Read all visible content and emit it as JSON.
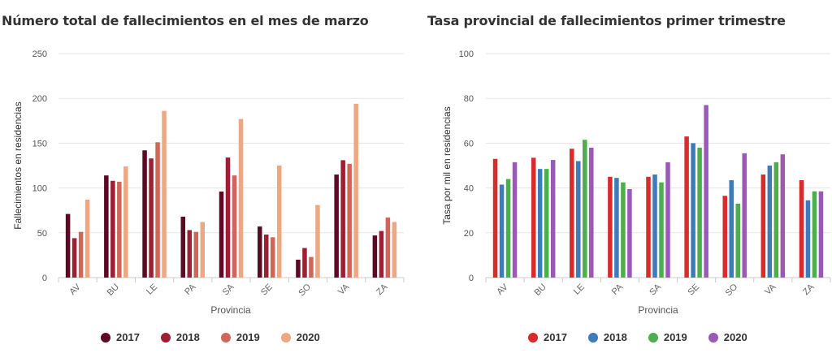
{
  "chart_data": [
    {
      "type": "bar",
      "title": "Número total de fallecimientos en el mes de marzo",
      "xlabel": "Provincia",
      "ylabel": "Fallecimientos en residencias",
      "ylim": [
        0,
        250
      ],
      "yticks": [
        "0",
        "50",
        "100",
        "150",
        "200",
        "250"
      ],
      "grid": true,
      "legend_position": "bottom",
      "categories": [
        "AV",
        "BU",
        "LE",
        "PA",
        "SA",
        "SE",
        "SO",
        "VA",
        "ZA"
      ],
      "series": [
        {
          "name": "2017",
          "color": "#5c0a24",
          "values": [
            71,
            114,
            142,
            68,
            96,
            57,
            20,
            115,
            47
          ]
        },
        {
          "name": "2018",
          "color": "#9e1f33",
          "values": [
            44,
            108,
            133,
            53,
            134,
            48,
            33,
            131,
            52
          ]
        },
        {
          "name": "2019",
          "color": "#d2655a",
          "values": [
            51,
            107,
            151,
            51,
            114,
            45,
            23,
            127,
            67
          ]
        },
        {
          "name": "2020",
          "color": "#eea783",
          "values": [
            87,
            124,
            186,
            62,
            177,
            125,
            81,
            194,
            62
          ]
        }
      ]
    },
    {
      "type": "bar",
      "title": "Tasa provincial de fallecimientos primer trimestre",
      "xlabel": "Provincia",
      "ylabel": "Tasa por mil en residencias",
      "ylim": [
        0,
        100
      ],
      "yticks": [
        "0",
        "20",
        "40",
        "60",
        "80",
        "100"
      ],
      "grid": true,
      "legend_position": "bottom",
      "categories": [
        "AV",
        "BU",
        "LE",
        "PA",
        "SA",
        "SE",
        "SO",
        "VA",
        "ZA"
      ],
      "series": [
        {
          "name": "2017",
          "color": "#d92b2b",
          "values": [
            53,
            53.5,
            57.5,
            45,
            45,
            63,
            36.5,
            46,
            43.5
          ]
        },
        {
          "name": "2018",
          "color": "#3d7cb8",
          "values": [
            41.5,
            48.5,
            52,
            44.5,
            46,
            60,
            43.5,
            50,
            34.5
          ]
        },
        {
          "name": "2019",
          "color": "#4cae4c",
          "values": [
            44,
            48.5,
            61.5,
            42.5,
            42.5,
            58,
            33,
            51.5,
            38.5
          ]
        },
        {
          "name": "2020",
          "color": "#9b59b6",
          "values": [
            51.5,
            52.5,
            58,
            39.5,
            51.5,
            77,
            55.5,
            55,
            38.5
          ]
        }
      ]
    }
  ]
}
